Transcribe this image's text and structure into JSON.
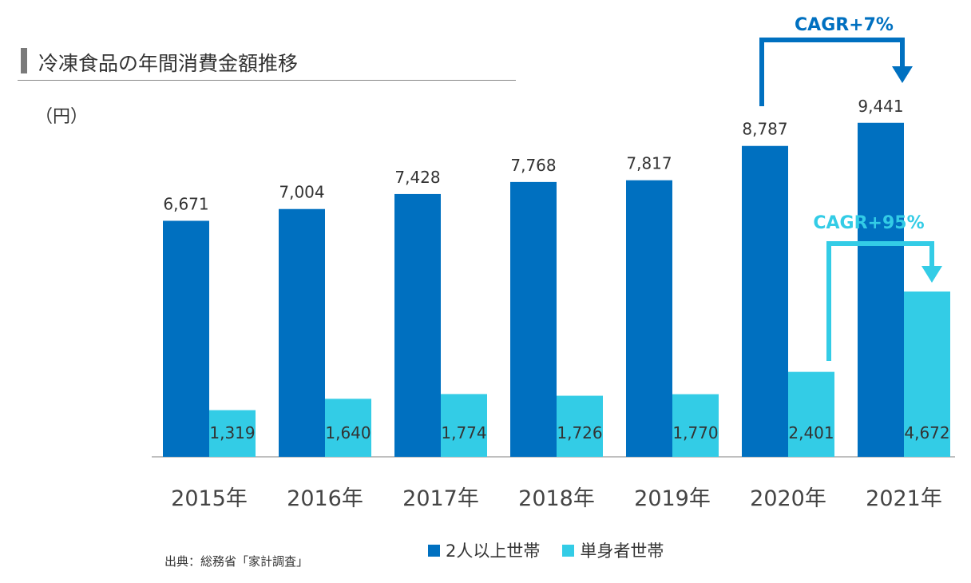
{
  "header": {
    "title": "冷凍食品の年間消費金額推移",
    "unit": "（円）"
  },
  "source": "出典：総務省「家計調査」",
  "colors": {
    "series1": "#0070c0",
    "series2": "#33cce6",
    "axis": "#bfbfbf",
    "text": "#333333"
  },
  "annotations": [
    {
      "label": "CAGR+7%",
      "color": "#0070c0",
      "from_category": "2020年",
      "to_category": "2021年",
      "series": "2人以上世帯"
    },
    {
      "label": "CAGR+95%",
      "color": "#33cce6",
      "from_category": "2020年",
      "to_category": "2021年",
      "series": "単身者世帯"
    }
  ],
  "chart_data": {
    "type": "bar",
    "categories": [
      "2015年",
      "2016年",
      "2017年",
      "2018年",
      "2019年",
      "2020年",
      "2021年"
    ],
    "series": [
      {
        "name": "2人以上世帯",
        "values": [
          6671,
          7004,
          7428,
          7768,
          7817,
          8787,
          9441
        ]
      },
      {
        "name": "単身者世帯",
        "values": [
          1319,
          1640,
          1774,
          1726,
          1770,
          2401,
          4672
        ]
      }
    ],
    "data_labels": [
      [
        "6,671",
        "7,004",
        "7,428",
        "7,768",
        "7,817",
        "8,787",
        "9,441"
      ],
      [
        "1,319",
        "1,640",
        "1,774",
        "1,726",
        "1,770",
        "2,401",
        "4,672"
      ]
    ],
    "ylim": [
      0,
      10000
    ],
    "grid": false,
    "legend": "bottom"
  }
}
